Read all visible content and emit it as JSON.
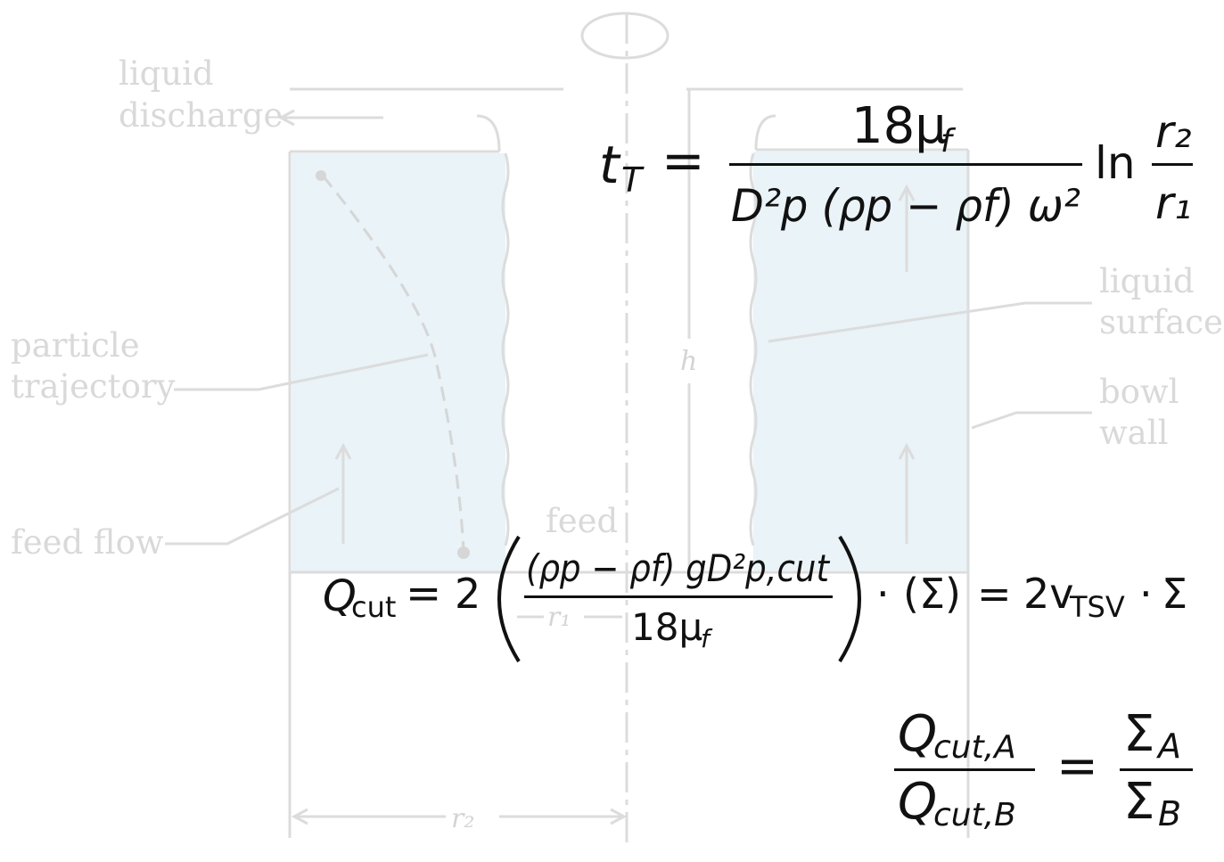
{
  "labels": {
    "liquid_discharge": [
      "liquid",
      "discharge"
    ],
    "liquid_surface": [
      "liquid",
      "surface"
    ],
    "particle_trajectory": [
      "particle",
      "trajectory"
    ],
    "bowl_wall": [
      "bowl",
      "wall"
    ],
    "feed_flow": "feed flow",
    "feed": "feed",
    "h": "h",
    "r1": "r₁",
    "r2": "r₂"
  },
  "equations": {
    "settling_time": {
      "lhs": "t",
      "lhs_sub": "T",
      "numerator": "18μ",
      "numerator_sub": "f",
      "denominator": "D²p (ρp − ρf) ω²",
      "log": "ln",
      "ratio_top": "r₂",
      "ratio_bottom": "r₁"
    },
    "cut_flow": {
      "lhs": "Q",
      "lhs_sub": "cut",
      "coef": "2",
      "numerator": "(ρp − ρf) gD²p,cut",
      "denominator": "18μ",
      "denominator_sub": "f",
      "sigma": "(Σ)",
      "rhs_coef": "2v",
      "rhs_sub": "TSV",
      "rhs_sigma": "Σ"
    },
    "scale_up": {
      "top_left": "Q",
      "top_left_sub": "cut,A",
      "bottom_left": "Q",
      "bottom_left_sub": "cut,B",
      "top_right": "Σ",
      "top_right_sub": "A",
      "bottom_right": "Σ",
      "bottom_right_sub": "B"
    }
  },
  "colors": {
    "liquid_fill": "#e9f3f8",
    "diagram_lines": "#dcdcdc",
    "label_text": "#d9d9d9",
    "equation_text": "#111111"
  }
}
